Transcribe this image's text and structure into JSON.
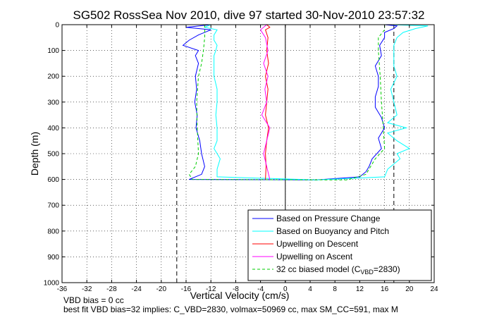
{
  "chart_data": {
    "type": "line",
    "title": "SG502 RossSea Nov 2010, dive 97 started 30-Nov-2010 23:57:32",
    "xlabel": "Vertical Velocity (cm/s)",
    "ylabel": "Depth (m)",
    "xlim": [
      -36,
      24
    ],
    "ylim": [
      0,
      1000
    ],
    "y_reversed": true,
    "grid": true,
    "xticks": [
      -36,
      -32,
      -28,
      -24,
      -20,
      -16,
      -12,
      -8,
      -4,
      0,
      4,
      8,
      12,
      16,
      20,
      24
    ],
    "yticks": [
      0,
      100,
      200,
      300,
      400,
      500,
      600,
      700,
      800,
      900,
      1000
    ],
    "legend_position": "bottom-right",
    "legend": [
      {
        "label": "Based on Pressure Change",
        "color": "#0000ff",
        "dash": "solid"
      },
      {
        "label": "Based on Buoyancy and Pitch",
        "color": "#00ffff",
        "dash": "solid"
      },
      {
        "label": "Upwelling on Descent",
        "color": "#ff0000",
        "dash": "solid"
      },
      {
        "label": "Upwelling on Ascent",
        "color": "#ff00ff",
        "dash": "solid"
      },
      {
        "label_prefix": "32 cc biased model (C",
        "label_sub": "VBD",
        "label_suffix": "=2830)",
        "color": "#00cc00",
        "dash": "dashed"
      }
    ],
    "reference_lines": [
      {
        "x": -17.5,
        "style": "dashed",
        "color": "#000000"
      },
      {
        "x": 17.5,
        "style": "dashed",
        "color": "#000000"
      },
      {
        "x": 0,
        "style": "solid",
        "color": "#000000"
      }
    ],
    "series": [
      {
        "name": "Based on Pressure Change",
        "color": "#0000ff",
        "depth": [
          0,
          10,
          20,
          40,
          60,
          80,
          100,
          120,
          150,
          200,
          250,
          300,
          350,
          400,
          450,
          500,
          550,
          580,
          600,
          602,
          590,
          570,
          550,
          520,
          480,
          440,
          400,
          360,
          320,
          280,
          240,
          200,
          160,
          120,
          80,
          50,
          30,
          15,
          5,
          0
        ],
        "velocity": [
          -12,
          -16,
          -12,
          -14,
          -15.5,
          -16.5,
          -14,
          -14.5,
          -14,
          -14.5,
          -14.3,
          -14.6,
          -14.2,
          -14.4,
          -13.8,
          -13.5,
          -13,
          -13.5,
          -15.5,
          5,
          12,
          13,
          13.5,
          14,
          15.5,
          15,
          16,
          15.5,
          14.5,
          14.5,
          15,
          15,
          14.5,
          15.5,
          15.2,
          16,
          16,
          17.5,
          18,
          16
        ]
      },
      {
        "name": "Based on Buoyancy and Pitch",
        "color": "#00ffff",
        "depth": [
          0,
          10,
          20,
          40,
          60,
          80,
          100,
          120,
          150,
          200,
          250,
          300,
          350,
          400,
          450,
          480,
          520,
          560,
          590,
          602,
          590,
          560,
          520,
          500,
          480,
          450,
          420,
          400,
          380,
          350,
          300,
          250,
          200,
          160,
          120,
          80,
          50,
          30,
          15,
          5,
          0
        ],
        "velocity": [
          -12,
          -13,
          -11,
          -11.5,
          -11.5,
          -11,
          -11.2,
          -11.5,
          -11.5,
          -11.5,
          -11,
          -11,
          -11.2,
          -11,
          -11,
          -11.5,
          -10.5,
          -11,
          -11,
          5,
          16,
          16.5,
          18.5,
          18,
          20,
          18,
          16.5,
          19.5,
          16.5,
          18,
          17.5,
          17,
          18,
          17.5,
          17.5,
          17.5,
          18,
          19,
          21,
          23,
          17
        ]
      },
      {
        "name": "Upwelling on Descent",
        "color": "#ff0000",
        "depth": [
          0,
          10,
          20,
          50,
          100,
          150,
          200,
          250,
          300,
          350,
          400,
          450,
          500,
          550,
          600
        ],
        "velocity": [
          -3,
          -2.5,
          -3.2,
          -2.8,
          -3,
          -2.7,
          -3.2,
          -2.8,
          -3,
          -3.2,
          -2.7,
          -3,
          -3.2,
          -3.1,
          -3.2
        ]
      },
      {
        "name": "Upwelling on Ascent",
        "color": "#ff00ff",
        "depth": [
          600,
          550,
          500,
          450,
          400,
          350,
          300,
          250,
          200,
          150,
          100,
          50,
          20,
          0
        ],
        "velocity": [
          -2.5,
          -3,
          -3.5,
          -3,
          -2.5,
          -3.8,
          -3,
          -3.3,
          -2.8,
          -3.5,
          -2.8,
          -3.2,
          -4,
          -3
        ]
      },
      {
        "name": "32 cc biased model (CVBD=2830)",
        "color": "#00cc00",
        "depth": [
          0,
          20,
          50,
          100,
          150,
          200,
          300,
          400,
          500,
          550,
          580,
          600,
          602,
          580,
          560,
          520,
          480,
          400,
          300,
          200,
          100,
          50,
          20,
          0
        ],
        "velocity": [
          -13,
          -13,
          -13,
          -13.2,
          -13.5,
          -14,
          -14.3,
          -14.2,
          -14,
          -14.5,
          -15.5,
          -15,
          10,
          13,
          13.5,
          14.5,
          16,
          15.8,
          15.5,
          15.3,
          15,
          15,
          16,
          16
        ]
      }
    ],
    "annotations": [
      "VBD bias = 0 cc",
      "best fit VBD bias=32 implies: C_VBD=2830, volmax=50969 cc, max SM_CC=591, max M"
    ]
  }
}
